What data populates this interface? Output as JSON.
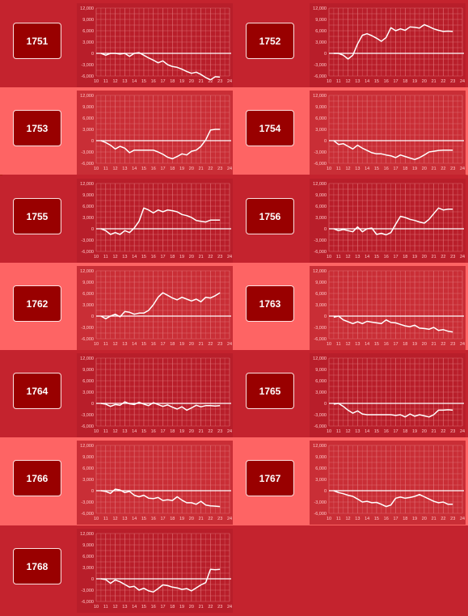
{
  "palette": {
    "row_dark": "#c4232e",
    "row_light": "#fe6464",
    "badge": "#990000",
    "chart_bg_dark": "#b81e2a",
    "chart_bg_light": "#c92e36",
    "grid": "#e47a7f",
    "line": "#ffffff",
    "label": "#ffc8c8"
  },
  "charts": [
    {
      "id": "1751"
    },
    {
      "id": "1752"
    },
    {
      "id": "1753"
    },
    {
      "id": "1754"
    },
    {
      "id": "1755"
    },
    {
      "id": "1756"
    },
    {
      "id": "1762"
    },
    {
      "id": "1763"
    },
    {
      "id": "1764"
    },
    {
      "id": "1765"
    },
    {
      "id": "1766"
    },
    {
      "id": "1767"
    },
    {
      "id": "1768"
    }
  ],
  "chart_data": [
    {
      "type": "line",
      "label": "1751",
      "xlim": [
        10,
        24
      ],
      "ylim": [
        -6000,
        12000
      ],
      "x_ticks": [
        "10",
        "11",
        "12",
        "13",
        "14",
        "15",
        "16",
        "17",
        "18",
        "19",
        "20",
        "21",
        "22",
        "23",
        "24"
      ],
      "y_ticks": [
        "12,000",
        "9,000",
        "6,000",
        "3,000",
        "0",
        "-3,000",
        "-6,000"
      ],
      "x": [
        10.5,
        11,
        11.5,
        12,
        12.5,
        13,
        13.5,
        14,
        14.5,
        15,
        15.5,
        16,
        16.5,
        17,
        17.5,
        18,
        18.5,
        19,
        19.5,
        20,
        20.5,
        21,
        21.5,
        22,
        22.5,
        23
      ],
      "y": [
        0,
        -500,
        0,
        0,
        -200,
        0,
        -800,
        0,
        200,
        -500,
        -1200,
        -1800,
        -2500,
        -2000,
        -3000,
        -3500,
        -3700,
        -4200,
        -4800,
        -5300,
        -5000,
        -5600,
        -6400,
        -7000,
        -6200,
        -6300
      ]
    },
    {
      "type": "line",
      "label": "1752",
      "xlim": [
        10,
        24
      ],
      "ylim": [
        -6000,
        12000
      ],
      "x_ticks": [
        "10",
        "11",
        "12",
        "13",
        "14",
        "15",
        "16",
        "17",
        "18",
        "19",
        "20",
        "21",
        "22",
        "23",
        "24"
      ],
      "y_ticks": [
        "12,000",
        "9,000",
        "6,000",
        "3,000",
        "0",
        "-3,000",
        "-6,000"
      ],
      "x": [
        10.5,
        11,
        11.5,
        12,
        12.5,
        13,
        13.5,
        14,
        14.5,
        15,
        15.5,
        16,
        16.5,
        17,
        17.5,
        18,
        18.5,
        19,
        19.5,
        20,
        20.5,
        21,
        21.5,
        22,
        22.5,
        23
      ],
      "y": [
        0,
        0,
        -500,
        -1500,
        -500,
        2500,
        4800,
        5200,
        4700,
        4000,
        3200,
        4200,
        6800,
        6000,
        6500,
        6100,
        7000,
        6900,
        6700,
        7600,
        7100,
        6500,
        6100,
        5800,
        5900,
        5800
      ]
    },
    {
      "type": "line",
      "label": "1753",
      "xlim": [
        10,
        24
      ],
      "ylim": [
        -6000,
        12000
      ],
      "x_ticks": [
        "10",
        "11",
        "12",
        "13",
        "14",
        "15",
        "16",
        "17",
        "18",
        "19",
        "20",
        "21",
        "22",
        "23",
        "24"
      ],
      "y_ticks": [
        "12,000",
        "9,000",
        "6,000",
        "3,000",
        "0",
        "-3,000",
        "-6,000"
      ],
      "x": [
        10.5,
        11,
        11.5,
        12,
        12.5,
        13,
        13.5,
        14,
        14.5,
        15,
        15.5,
        16,
        16.5,
        17,
        17.5,
        18,
        18.5,
        19,
        19.5,
        20,
        20.5,
        21,
        21.5,
        22,
        22.5,
        23
      ],
      "y": [
        0,
        -500,
        -1200,
        -2200,
        -1500,
        -2000,
        -3200,
        -2500,
        -2500,
        -2500,
        -2500,
        -2500,
        -3000,
        -3600,
        -4400,
        -4800,
        -4200,
        -3500,
        -3800,
        -2800,
        -2500,
        -1500,
        200,
        2800,
        3000,
        3000
      ]
    },
    {
      "type": "line",
      "label": "1754",
      "xlim": [
        10,
        24
      ],
      "ylim": [
        -6000,
        12000
      ],
      "x_ticks": [
        "10",
        "11",
        "12",
        "13",
        "14",
        "15",
        "16",
        "17",
        "18",
        "19",
        "20",
        "21",
        "22",
        "23",
        "24"
      ],
      "y_ticks": [
        "12,000",
        "9,000",
        "6,000",
        "3,000",
        "0",
        "-3,000",
        "-6,000"
      ],
      "x": [
        10.5,
        11,
        11.5,
        12,
        12.5,
        13,
        13.5,
        14,
        14.5,
        15,
        15.5,
        16,
        16.5,
        17,
        17.5,
        18,
        18.5,
        19,
        19.5,
        20,
        20.5,
        21,
        21.5,
        22,
        22.5,
        23
      ],
      "y": [
        0,
        -1000,
        -800,
        -1500,
        -2200,
        -1200,
        -2000,
        -2600,
        -3200,
        -3500,
        -3500,
        -3800,
        -4000,
        -4500,
        -3800,
        -4200,
        -4600,
        -5000,
        -4500,
        -3800,
        -3000,
        -2800,
        -2600,
        -2500,
        -2500,
        -2500
      ]
    },
    {
      "type": "line",
      "label": "1755",
      "xlim": [
        10,
        24
      ],
      "ylim": [
        -6000,
        12000
      ],
      "x_ticks": [
        "10",
        "11",
        "12",
        "13",
        "14",
        "15",
        "16",
        "17",
        "18",
        "19",
        "20",
        "21",
        "22",
        "23",
        "24"
      ],
      "y_ticks": [
        "12,000",
        "9,000",
        "6,000",
        "3,000",
        "0",
        "-3,000",
        "-6,000"
      ],
      "x": [
        10.5,
        11,
        11.5,
        12,
        12.5,
        13,
        13.5,
        14,
        14.5,
        15,
        15.5,
        16,
        16.5,
        17,
        17.5,
        18,
        18.5,
        19,
        19.5,
        20,
        20.5,
        21,
        21.5,
        22,
        22.5,
        23
      ],
      "y": [
        0,
        -500,
        -1500,
        -1000,
        -1500,
        -500,
        -1000,
        200,
        2000,
        5500,
        5000,
        4200,
        5000,
        4500,
        5000,
        4800,
        4500,
        3800,
        3500,
        3000,
        2200,
        2000,
        1800,
        2300,
        2300,
        2300
      ]
    },
    {
      "type": "line",
      "label": "1756",
      "xlim": [
        10,
        24
      ],
      "ylim": [
        -6000,
        12000
      ],
      "x_ticks": [
        "10",
        "11",
        "12",
        "13",
        "14",
        "15",
        "16",
        "17",
        "18",
        "19",
        "20",
        "21",
        "22",
        "23",
        "24"
      ],
      "y_ticks": [
        "12,000",
        "9,000",
        "6,000",
        "3,000",
        "0",
        "-3,000",
        "-6,000"
      ],
      "x": [
        10.5,
        11,
        11.5,
        12,
        12.5,
        13,
        13.5,
        14,
        14.5,
        15,
        15.5,
        16,
        16.5,
        17,
        17.5,
        18,
        18.5,
        19,
        19.5,
        20,
        20.5,
        21,
        21.5,
        22,
        22.5,
        23
      ],
      "y": [
        0,
        -500,
        -200,
        -500,
        -800,
        500,
        -800,
        0,
        200,
        -1500,
        -1200,
        -1600,
        -1000,
        1200,
        3300,
        3000,
        2500,
        2200,
        1800,
        1500,
        2500,
        4000,
        5500,
        5000,
        5200,
        5200
      ]
    },
    {
      "type": "line",
      "label": "1762",
      "xlim": [
        10,
        24
      ],
      "ylim": [
        -6000,
        12000
      ],
      "x_ticks": [
        "10",
        "11",
        "12",
        "13",
        "14",
        "15",
        "16",
        "17",
        "18",
        "19",
        "20",
        "21",
        "22",
        "23",
        "24"
      ],
      "y_ticks": [
        "12,000",
        "9,000",
        "6,000",
        "3,000",
        "0",
        "-3,000",
        "-6,000"
      ],
      "x": [
        10.5,
        11,
        11.5,
        12,
        12.5,
        13,
        13.5,
        14,
        14.5,
        15,
        15.5,
        16,
        16.5,
        17,
        17.5,
        18,
        18.5,
        19,
        19.5,
        20,
        20.5,
        21,
        21.5,
        22,
        22.5,
        23
      ],
      "y": [
        0,
        -700,
        0,
        500,
        -200,
        1200,
        1000,
        500,
        800,
        800,
        1500,
        3000,
        5000,
        6200,
        5500,
        4800,
        4300,
        5000,
        4500,
        4000,
        4500,
        3800,
        5000,
        4800,
        5400,
        6200
      ]
    },
    {
      "type": "line",
      "label": "1763",
      "xlim": [
        10,
        24
      ],
      "ylim": [
        -6000,
        12000
      ],
      "x_ticks": [
        "10",
        "11",
        "12",
        "13",
        "14",
        "15",
        "16",
        "17",
        "18",
        "19",
        "20",
        "21",
        "22",
        "23",
        "24"
      ],
      "y_ticks": [
        "12,000",
        "9,000",
        "6,000",
        "3,000",
        "0",
        "-3,000",
        "-6,000"
      ],
      "x": [
        10.5,
        11,
        11.5,
        12,
        12.5,
        13,
        13.5,
        14,
        14.5,
        15,
        15.5,
        16,
        16.5,
        17,
        17.5,
        18,
        18.5,
        19,
        19.5,
        20,
        20.5,
        21,
        21.5,
        22,
        22.5,
        23
      ],
      "y": [
        -300,
        0,
        -1000,
        -1500,
        -2000,
        -1500,
        -2000,
        -1400,
        -1600,
        -1800,
        -2000,
        -1000,
        -1700,
        -1800,
        -2200,
        -2600,
        -2800,
        -2400,
        -3200,
        -3300,
        -3500,
        -3000,
        -3800,
        -3600,
        -4000,
        -4200
      ]
    },
    {
      "type": "line",
      "label": "1764",
      "xlim": [
        10,
        24
      ],
      "ylim": [
        -6000,
        12000
      ],
      "x_ticks": [
        "10",
        "11",
        "12",
        "13",
        "14",
        "15",
        "16",
        "17",
        "18",
        "19",
        "20",
        "21",
        "22",
        "23",
        "24"
      ],
      "y_ticks": [
        "12,000",
        "9,000",
        "6,000",
        "3,000",
        "0",
        "-3,000",
        "-6,000"
      ],
      "x": [
        10.5,
        11,
        11.5,
        12,
        12.5,
        13,
        13.5,
        14,
        14.5,
        15,
        15.5,
        16,
        16.5,
        17,
        17.5,
        18,
        18.5,
        19,
        19.5,
        20,
        20.5,
        21,
        21.5,
        22,
        22.5,
        23
      ],
      "y": [
        0,
        -200,
        -800,
        -300,
        -500,
        400,
        -100,
        -300,
        300,
        -200,
        -600,
        200,
        -300,
        -800,
        -400,
        -1000,
        -1500,
        -900,
        -1800,
        -1200,
        -500,
        -900,
        -600,
        -600,
        -700,
        -600
      ]
    },
    {
      "type": "line",
      "label": "1765",
      "xlim": [
        10,
        24
      ],
      "ylim": [
        -6000,
        12000
      ],
      "x_ticks": [
        "10",
        "11",
        "12",
        "13",
        "14",
        "15",
        "16",
        "17",
        "18",
        "19",
        "20",
        "21",
        "22",
        "23",
        "24"
      ],
      "y_ticks": [
        "12,000",
        "9,000",
        "6,000",
        "3,000",
        "0",
        "-3,000",
        "-6,000"
      ],
      "x": [
        10.5,
        11,
        11.5,
        12,
        12.5,
        13,
        13.5,
        14,
        14.5,
        15,
        15.5,
        16,
        16.5,
        17,
        17.5,
        18,
        18.5,
        19,
        19.5,
        20,
        20.5,
        21,
        21.5,
        22,
        22.5,
        23
      ],
      "y": [
        -200,
        0,
        -800,
        -1800,
        -2600,
        -2000,
        -2800,
        -3000,
        -3000,
        -3000,
        -3000,
        -3000,
        -3000,
        -3200,
        -3000,
        -3600,
        -2800,
        -3400,
        -3000,
        -3300,
        -3600,
        -3000,
        -1800,
        -1800,
        -1700,
        -1800
      ]
    },
    {
      "type": "line",
      "label": "1766",
      "xlim": [
        10,
        24
      ],
      "ylim": [
        -6000,
        12000
      ],
      "x_ticks": [
        "10",
        "11",
        "12",
        "13",
        "14",
        "15",
        "16",
        "17",
        "18",
        "19",
        "20",
        "21",
        "22",
        "23",
        "24"
      ],
      "y_ticks": [
        "12,000",
        "9,000",
        "6,000",
        "3,000",
        "0",
        "-3,000",
        "-6,000"
      ],
      "x": [
        10.5,
        11,
        11.5,
        12,
        12.5,
        13,
        13.5,
        14,
        14.5,
        15,
        15.5,
        16,
        16.5,
        17,
        17.5,
        18,
        18.5,
        19,
        19.5,
        20,
        20.5,
        21,
        21.5,
        22,
        22.5,
        23
      ],
      "y": [
        0,
        -200,
        -700,
        400,
        200,
        -500,
        -200,
        -1200,
        -1600,
        -1200,
        -2000,
        -2100,
        -1800,
        -2600,
        -2400,
        -2600,
        -1600,
        -2500,
        -3200,
        -3200,
        -3600,
        -2800,
        -3800,
        -4000,
        -4100,
        -4200
      ]
    },
    {
      "type": "line",
      "label": "1767",
      "xlim": [
        10,
        24
      ],
      "ylim": [
        -6000,
        12000
      ],
      "x_ticks": [
        "10",
        "11",
        "12",
        "13",
        "14",
        "15",
        "16",
        "17",
        "18",
        "19",
        "20",
        "21",
        "22",
        "23",
        "24"
      ],
      "y_ticks": [
        "12,000",
        "9,000",
        "6,000",
        "3,000",
        "0",
        "-3,000",
        "-6,000"
      ],
      "x": [
        10.5,
        11,
        11.5,
        12,
        12.5,
        13,
        13.5,
        14,
        14.5,
        15,
        15.5,
        16,
        16.5,
        17,
        17.5,
        18,
        18.5,
        19,
        19.5,
        20,
        20.5,
        21,
        21.5,
        22,
        22.5,
        23
      ],
      "y": [
        0,
        -500,
        -800,
        -1200,
        -1500,
        -2200,
        -3000,
        -2800,
        -3200,
        -3100,
        -3600,
        -4200,
        -3800,
        -2000,
        -1700,
        -2000,
        -1800,
        -1500,
        -1000,
        -1600,
        -2200,
        -2800,
        -3200,
        -3000,
        -3600,
        -3600
      ]
    },
    {
      "type": "line",
      "label": "1768",
      "xlim": [
        10,
        24
      ],
      "ylim": [
        -6000,
        12000
      ],
      "x_ticks": [
        "10",
        "11",
        "12",
        "13",
        "14",
        "15",
        "16",
        "17",
        "18",
        "19",
        "20",
        "21",
        "22",
        "23",
        "24"
      ],
      "y_ticks": [
        "12,000",
        "9,000",
        "6,000",
        "3,000",
        "0",
        "-3,000",
        "-6,000"
      ],
      "x": [
        10.5,
        11,
        11.5,
        12,
        12.5,
        13,
        13.5,
        14,
        14.5,
        15,
        15.5,
        16,
        16.5,
        17,
        17.5,
        18,
        18.5,
        19,
        19.5,
        20,
        20.5,
        21,
        21.5,
        22,
        22.5,
        23
      ],
      "y": [
        0,
        -200,
        -1200,
        -300,
        -800,
        -1500,
        -2200,
        -2000,
        -3000,
        -2500,
        -3200,
        -3500,
        -2600,
        -1600,
        -1800,
        -2200,
        -2400,
        -2800,
        -2600,
        -3200,
        -2400,
        -1600,
        -1000,
        2500,
        2400,
        2500
      ]
    }
  ]
}
